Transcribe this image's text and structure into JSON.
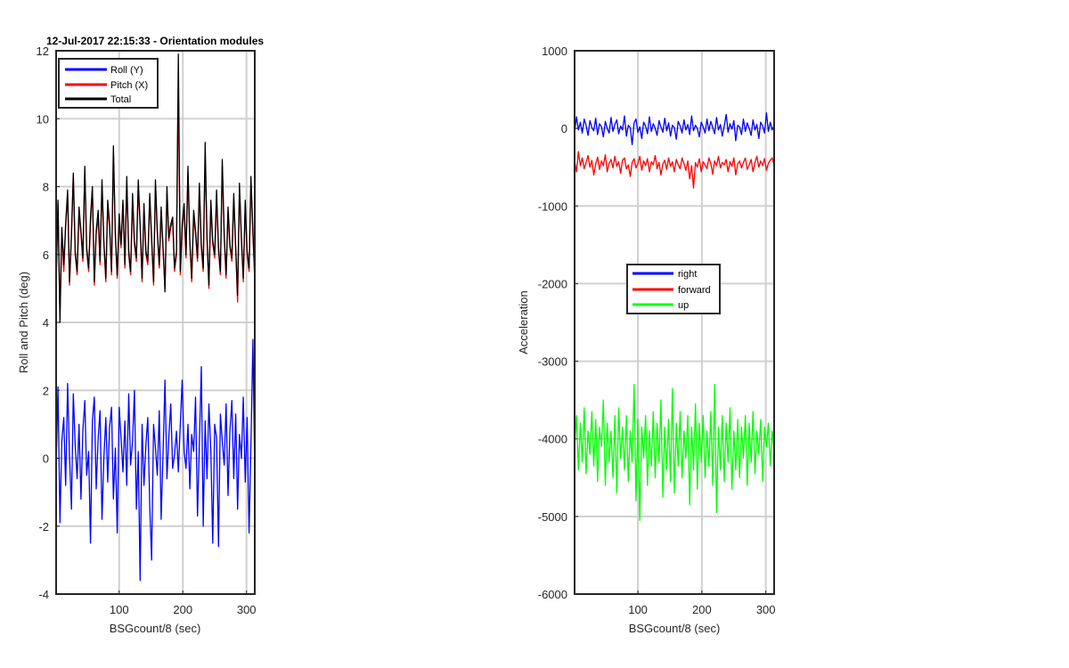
{
  "chart_data": [
    {
      "type": "line",
      "title": "12-Jul-2017 22:15:33 - Orientation modules",
      "xlabel": "BSGcount/8 (sec)",
      "ylabel": "Roll and Pitch (deg)",
      "xlim": [
        1,
        313
      ],
      "ylim": [
        -4,
        12
      ],
      "x_ticks": [
        100,
        200,
        300
      ],
      "y_ticks": [
        -4,
        -2,
        0,
        2,
        4,
        6,
        8,
        10,
        12
      ],
      "grid": true,
      "legend_position": "top-left",
      "series": [
        {
          "name": "Roll (Y)",
          "color": "#0000ff",
          "sample_interval": 3,
          "values": [
            -0.3,
            2.1,
            -1.9,
            0.5,
            1.2,
            -0.8,
            2.2,
            0.1,
            -1.5,
            1.9,
            0.4,
            -0.6,
            1.0,
            -1.2,
            0.8,
            1.7,
            -0.5,
            0.2,
            -2.5,
            1.1,
            1.8,
            -0.9,
            0.6,
            1.4,
            -1.8,
            0.0,
            1.2,
            -0.7,
            0.9,
            1.5,
            -1.2,
            0.3,
            -2.2,
            1.5,
            0.6,
            -0.4,
            1.1,
            -0.8,
            1.9,
            -0.2,
            0.5,
            2.0,
            -1.5,
            0.2,
            -3.6,
            1.0,
            -0.8,
            0.4,
            1.2,
            -1.4,
            -3.0,
            1.0,
            0.3,
            -0.5,
            1.4,
            -1.8,
            0.2,
            2.3,
            -0.6,
            0.6,
            1.6,
            -0.3,
            0.1,
            0.8,
            -0.4,
            1.0,
            2.3,
            0.2,
            -0.3,
            1.0,
            -0.9,
            0.7,
            0.2,
            1.8,
            -1.7,
            0.4,
            2.7,
            -2.0,
            1.1,
            -0.6,
            1.6,
            0.2,
            -2.5,
            1.0,
            0.6,
            -2.6,
            1.3,
            0.5,
            -0.2,
            1.6,
            -1.1,
            0.8,
            1.7,
            -0.6,
            1.3,
            -1.5,
            0.7,
            0.0,
            1.8,
            -0.7,
            1.2,
            -2.2,
            0.4,
            3.5,
            -0.5,
            0.0,
            -0.9
          ]
        },
        {
          "name": "Pitch (X)",
          "color": "#ff0000",
          "sample_interval": 3,
          "values": [
            5.0,
            7.5,
            4.2,
            6.7,
            5.5,
            6.8,
            7.8,
            5.1,
            6.5,
            8.3,
            6.0,
            5.4,
            7.2,
            6.6,
            5.8,
            8.5,
            6.1,
            5.5,
            6.9,
            7.9,
            5.1,
            6.6,
            7.1,
            5.7,
            8.0,
            6.3,
            5.2,
            7.4,
            6.8,
            5.4,
            8.9,
            6.5,
            5.3,
            7.0,
            6.2,
            7.5,
            5.6,
            8.1,
            6.0,
            5.4,
            7.6,
            6.3,
            5.8,
            8.0,
            6.8,
            5.2,
            7.3,
            6.0,
            5.7,
            7.6,
            6.4,
            5.1,
            8.0,
            6.6,
            5.6,
            7.2,
            6.1,
            5.0,
            7.8,
            6.4,
            6.8,
            7.0,
            5.5,
            6.0,
            11.0,
            5.4,
            6.8,
            7.3,
            5.9,
            8.4,
            6.3,
            5.2,
            7.1,
            6.6,
            5.8,
            7.9,
            6.2,
            5.5,
            8.8,
            6.4,
            5.0,
            7.4,
            6.3,
            5.9,
            7.7,
            6.1,
            5.4,
            8.6,
            6.5,
            5.3,
            7.2,
            6.2,
            5.8,
            7.6,
            6.1,
            4.6,
            7.9,
            6.4,
            5.2,
            7.4,
            6.0,
            5.5,
            8.1,
            6.6,
            5.2,
            8.8,
            4.6
          ]
        },
        {
          "name": "Total",
          "color": "#000000",
          "sample_interval": 3,
          "values": [
            5.2,
            7.6,
            4.0,
            6.8,
            5.7,
            6.9,
            7.9,
            5.2,
            6.6,
            8.4,
            6.1,
            5.5,
            7.4,
            6.7,
            5.9,
            8.6,
            6.2,
            5.6,
            7.1,
            8.0,
            5.2,
            6.7,
            7.3,
            5.8,
            8.2,
            6.4,
            5.3,
            7.6,
            6.9,
            5.5,
            9.2,
            6.6,
            5.4,
            7.2,
            6.3,
            7.6,
            5.7,
            8.3,
            6.1,
            5.5,
            7.8,
            6.4,
            5.9,
            8.2,
            6.9,
            5.3,
            7.5,
            6.1,
            5.8,
            7.8,
            6.5,
            5.2,
            8.2,
            6.7,
            5.7,
            7.4,
            6.2,
            4.9,
            8.0,
            6.5,
            6.9,
            7.1,
            5.6,
            6.1,
            11.9,
            5.5,
            6.9,
            7.5,
            6.0,
            8.6,
            6.4,
            5.3,
            7.3,
            6.7,
            5.9,
            8.1,
            6.3,
            5.6,
            9.3,
            6.5,
            5.1,
            7.6,
            6.4,
            6.0,
            7.9,
            6.2,
            5.5,
            8.8,
            6.6,
            5.4,
            7.4,
            6.3,
            5.9,
            7.8,
            6.2,
            4.8,
            8.1,
            6.5,
            5.3,
            7.6,
            6.1,
            5.6,
            8.3,
            6.7,
            5.3,
            9.2,
            4.7
          ]
        }
      ]
    },
    {
      "type": "line",
      "title": "",
      "xlabel": "BSGcount/8 (sec)",
      "ylabel": "Acceleration",
      "xlim": [
        1,
        313
      ],
      "ylim": [
        -6000,
        1000
      ],
      "x_ticks": [
        100,
        200,
        300
      ],
      "y_ticks": [
        -6000,
        -5000,
        -4000,
        -3000,
        -2000,
        -1000,
        0,
        1000
      ],
      "grid": true,
      "legend_position": "center",
      "series": [
        {
          "name": "right",
          "color": "#0000ff",
          "sample_interval": 3,
          "values": [
            -50,
            150,
            -20,
            80,
            -60,
            120,
            40,
            -90,
            100,
            10,
            -30,
            130,
            -80,
            60,
            20,
            -110,
            90,
            0,
            -60,
            140,
            -40,
            50,
            110,
            -70,
            30,
            -20,
            160,
            -100,
            40,
            10,
            -210,
            70,
            120,
            -50,
            20,
            -130,
            80,
            30,
            -70,
            150,
            -40,
            60,
            0,
            -90,
            100,
            20,
            -50,
            130,
            -30,
            70,
            -100,
            40,
            10,
            -140,
            90,
            30,
            -60,
            110,
            -20,
            50,
            -80,
            160,
            -30,
            40,
            0,
            -110,
            80,
            20,
            -60,
            120,
            -30,
            90,
            10,
            -70,
            140,
            -20,
            50,
            -100,
            30,
            180,
            -50,
            60,
            -10,
            100,
            -160,
            40,
            20,
            -80,
            120,
            -40,
            70,
            0,
            -90,
            110,
            -20,
            50,
            -130,
            80,
            30,
            -60,
            200,
            -40,
            80,
            -20,
            40,
            -30
          ]
        },
        {
          "name": "forward",
          "color": "#ff0000",
          "sample_interval": 3,
          "values": [
            -420,
            -560,
            -300,
            -480,
            -380,
            -520,
            -440,
            -350,
            -500,
            -410,
            -600,
            -460,
            -370,
            -530,
            -420,
            -480,
            -340,
            -560,
            -450,
            -400,
            -510,
            -360,
            -490,
            -430,
            -580,
            -410,
            -380,
            -520,
            -470,
            -620,
            -440,
            -390,
            -510,
            -450,
            -360,
            -540,
            -420,
            -480,
            -390,
            -560,
            -430,
            -470,
            -350,
            -520,
            -440,
            -600,
            -460,
            -410,
            -530,
            -380,
            -490,
            -430,
            -560,
            -400,
            -470,
            -520,
            -380,
            -450,
            -540,
            -420,
            -650,
            -480,
            -770,
            -440,
            -500,
            -390,
            -560,
            -430,
            -470,
            -520,
            -380,
            -450,
            -590,
            -420,
            -480,
            -360,
            -510,
            -440,
            -470,
            -400,
            -560,
            -430,
            -490,
            -380,
            -600,
            -460,
            -420,
            -510,
            -440,
            -380,
            -530,
            -470,
            -400,
            -560,
            -440,
            -360,
            -500,
            -420,
            -480,
            -390,
            -540,
            -450,
            -410,
            -380,
            -470,
            -430
          ]
        },
        {
          "name": "up",
          "color": "#00ff00",
          "sample_interval": 3,
          "values": [
            -4100,
            -3700,
            -4400,
            -3800,
            -4300,
            -3600,
            -4450,
            -3900,
            -4200,
            -3650,
            -4350,
            -3750,
            -4550,
            -3850,
            -4100,
            -3500,
            -4600,
            -3800,
            -4300,
            -3900,
            -4500,
            -3700,
            -4700,
            -3600,
            -4250,
            -3850,
            -4400,
            -3700,
            -4550,
            -3900,
            -4300,
            -3300,
            -4800,
            -3750,
            -5050,
            -3850,
            -4250,
            -3700,
            -4600,
            -3900,
            -4350,
            -3650,
            -4500,
            -3800,
            -4300,
            -3500,
            -4750,
            -3850,
            -4400,
            -3750,
            -4550,
            -3350,
            -4700,
            -3800,
            -4350,
            -3650,
            -4500,
            -3900,
            -4250,
            -3700,
            -4850,
            -3850,
            -4400,
            -3550,
            -4650,
            -3800,
            -4300,
            -3700,
            -4500,
            -3900,
            -4350,
            -3650,
            -4600,
            -3300,
            -4950,
            -3850,
            -4400,
            -3700,
            -4550,
            -3800,
            -4300,
            -3600,
            -4650,
            -3900,
            -4400,
            -3750,
            -4500,
            -3850,
            -4250,
            -3700,
            -4600,
            -3800,
            -4300,
            -3650,
            -4450,
            -3900,
            -4200,
            -3750,
            -4550,
            -3850,
            -4100,
            -3800,
            -4350,
            -3900,
            -4150,
            -4400
          ]
        }
      ]
    }
  ]
}
